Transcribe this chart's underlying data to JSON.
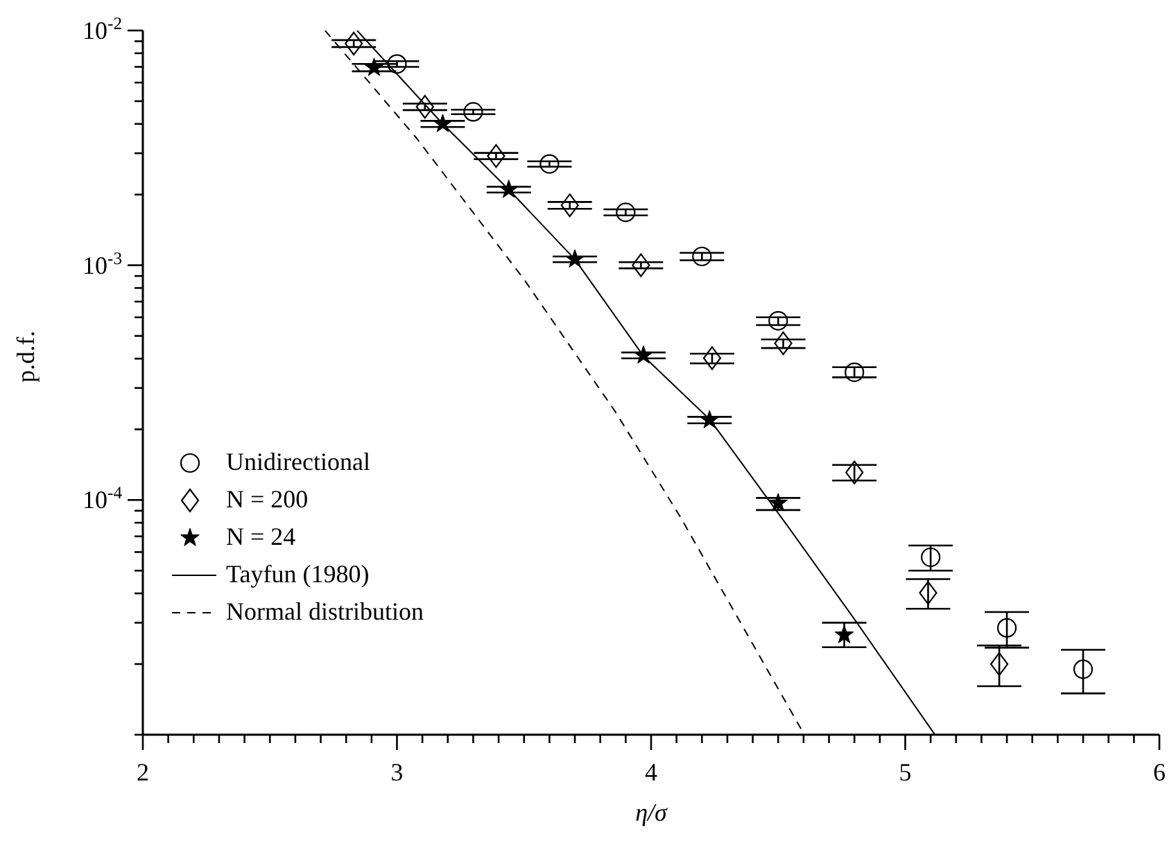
{
  "chart_data": {
    "type": "scatter",
    "xlabel": "η/σ",
    "ylabel": "p.d.f.",
    "log": "y",
    "legend": "bottom left",
    "xlim": [
      2,
      6
    ],
    "xticks": [
      2,
      {
        "value": 2.1,
        "label": null
      },
      {
        "value": 2.2,
        "label": null
      },
      {
        "value": 2.3,
        "label": null
      },
      {
        "value": 2.4,
        "label": null
      },
      {
        "value": 2.5,
        "label": null
      },
      {
        "value": 2.6,
        "label": null
      },
      {
        "value": 2.7,
        "label": null
      },
      {
        "value": 2.8,
        "label": null
      },
      {
        "value": 2.9,
        "label": null
      },
      3,
      {
        "value": 3.1,
        "label": null
      },
      {
        "value": 3.2,
        "label": null
      },
      {
        "value": 3.3,
        "label": null
      },
      {
        "value": 3.4,
        "label": null
      },
      {
        "value": 3.5,
        "label": null
      },
      {
        "value": 3.6,
        "label": null
      },
      {
        "value": 3.7,
        "label": null
      },
      {
        "value": 3.8,
        "label": null
      },
      {
        "value": 3.9,
        "label": null
      },
      4,
      {
        "value": 4.1,
        "label": null
      },
      {
        "value": 4.2,
        "label": null
      },
      {
        "value": 4.3,
        "label": null
      },
      {
        "value": 4.4,
        "label": null
      },
      {
        "value": 4.5,
        "label": null
      },
      {
        "value": 4.6,
        "label": null
      },
      {
        "value": 4.7,
        "label": null
      },
      {
        "value": 4.8,
        "label": null
      },
      {
        "value": 4.9,
        "label": null
      },
      5,
      {
        "value": 5.1,
        "label": null
      },
      {
        "value": 5.2,
        "label": null
      },
      {
        "value": 5.3,
        "label": null
      },
      {
        "value": 5.4,
        "label": null
      },
      {
        "value": 5.5,
        "label": null
      },
      {
        "value": 5.6,
        "label": null
      },
      {
        "value": 5.7,
        "label": null
      },
      {
        "value": 5.8,
        "label": null
      },
      {
        "value": 5.9,
        "label": null
      },
      6
    ],
    "ylim": [
      1e-05,
      0.01
    ],
    "yticks": [
      {
        "value": 1e-05,
        "label": null
      },
      {
        "value": 2e-05,
        "label": null
      },
      {
        "value": 3e-05,
        "label": null
      },
      {
        "value": 4e-05,
        "label": null
      },
      {
        "value": 5e-05,
        "label": null
      },
      {
        "value": 6e-05,
        "label": null
      },
      {
        "value": 7e-05,
        "label": null
      },
      {
        "value": 8e-05,
        "label": null
      },
      {
        "value": 9e-05,
        "label": null
      },
      {
        "value": 0.0001,
        "label": "10$^{-4}$"
      },
      {
        "value": 0.0002,
        "label": null
      },
      {
        "value": 0.0003,
        "label": null
      },
      {
        "value": 0.0004,
        "label": null
      },
      {
        "value": 0.0005,
        "label": null
      },
      {
        "value": 0.0006,
        "label": null
      },
      {
        "value": 0.0007,
        "label": null
      },
      {
        "value": 0.0008,
        "label": null
      },
      {
        "value": 0.0009,
        "label": null
      },
      {
        "value": 0.001,
        "label": "10$^{-3}$"
      },
      {
        "value": 0.002,
        "label": null
      },
      {
        "value": 0.003,
        "label": null
      },
      {
        "value": 0.004,
        "label": null
      },
      {
        "value": 0.005,
        "label": null
      },
      {
        "value": 0.006,
        "label": null
      },
      {
        "value": 0.007,
        "label": null
      },
      {
        "value": 0.008,
        "label": null
      },
      {
        "value": 0.009,
        "label": null
      },
      {
        "value": 0.01,
        "label": "10$^{-2}$"
      }
    ],
    "series": [
      {
        "name": "Unidirectional",
        "marker": "circle",
        "color": "#000000",
        "x": [
          3.0,
          3.3,
          3.6,
          3.9,
          4.2,
          4.5,
          4.8,
          5.1,
          5.4,
          5.7
        ],
        "values": [
          0.0072,
          0.0045,
          0.0027,
          0.00168,
          0.00109,
          0.00058,
          0.00035,
          5.7e-05,
          2.85e-05,
          1.9e-05
        ],
        "errors": [
          [
            0.007,
            0.0074
          ],
          [
            0.0044,
            0.0046
          ],
          [
            0.00263,
            0.00277
          ],
          [
            0.00163,
            0.00173
          ],
          [
            0.00105,
            0.00113
          ],
          [
            0.000556,
            0.0006
          ],
          [
            0.000333,
            0.000368
          ],
          [
            5e-05,
            6.4e-05
          ],
          [
            2.35e-05,
            3.33e-05
          ],
          [
            1.5e-05,
            2.3e-05
          ]
        ]
      },
      {
        "name": "N = 200",
        "marker": "diamond",
        "color": "#000000",
        "x": [
          2.83,
          3.11,
          3.39,
          3.68,
          3.96,
          4.24,
          4.52,
          4.8,
          5.09,
          5.37
        ],
        "values": [
          0.0088,
          0.00473,
          0.00292,
          0.0018,
          0.001,
          0.000402,
          0.000465,
          0.000131,
          4.02e-05,
          2e-05
        ],
        "errors": [
          [
            0.0085,
            0.0091
          ],
          [
            0.00458,
            0.00488
          ],
          [
            0.00283,
            0.00301
          ],
          [
            0.00174,
            0.00186
          ],
          [
            0.00097,
            0.00103
          ],
          [
            0.000382,
            0.00042
          ],
          [
            0.000444,
            0.000483
          ],
          [
            0.000121,
            0.000141
          ],
          [
            3.44e-05,
            4.6e-05
          ],
          [
            1.61e-05,
            2.4e-05
          ]
        ]
      },
      {
        "name": "N = 24",
        "marker": "star",
        "color": "#000000",
        "x": [
          2.91,
          3.18,
          3.44,
          3.7,
          3.97,
          4.23,
          4.5,
          4.76
        ],
        "values": [
          0.00694,
          0.004,
          0.0021,
          0.00106,
          0.000413,
          0.000219,
          9.7e-05,
          2.66e-05
        ],
        "errors": [
          [
            0.0067,
            0.0072
          ],
          [
            0.00388,
            0.00412
          ],
          [
            0.00204,
            0.00216
          ],
          [
            0.00103,
            0.00109
          ],
          [
            0.000401,
            0.000425
          ],
          [
            0.000212,
            0.000226
          ],
          [
            9.06e-05,
            0.000102
          ],
          [
            2.36e-05,
            3e-05
          ]
        ]
      },
      {
        "name": "Tayfun (1980)",
        "type": "line",
        "line_style": "solid",
        "color": "#000000",
        "x": [
          2.843,
          3.18,
          3.44,
          3.7,
          3.97,
          4.233,
          4.534,
          4.807,
          5.117
        ],
        "values": [
          0.01,
          0.004,
          0.0021,
          0.00106,
          0.00041,
          0.000219,
          7.83e-05,
          3.03e-05,
          1e-05
        ]
      },
      {
        "name": "Normal distribution",
        "type": "line",
        "line_style": "dashed",
        "color": "#000000",
        "x": [
          2.717,
          3.077,
          3.5,
          3.86,
          4.115,
          4.603
        ],
        "values": [
          0.01,
          0.00348,
          0.00087,
          0.000237,
          8.47e-05,
          1e-05
        ]
      }
    ]
  }
}
